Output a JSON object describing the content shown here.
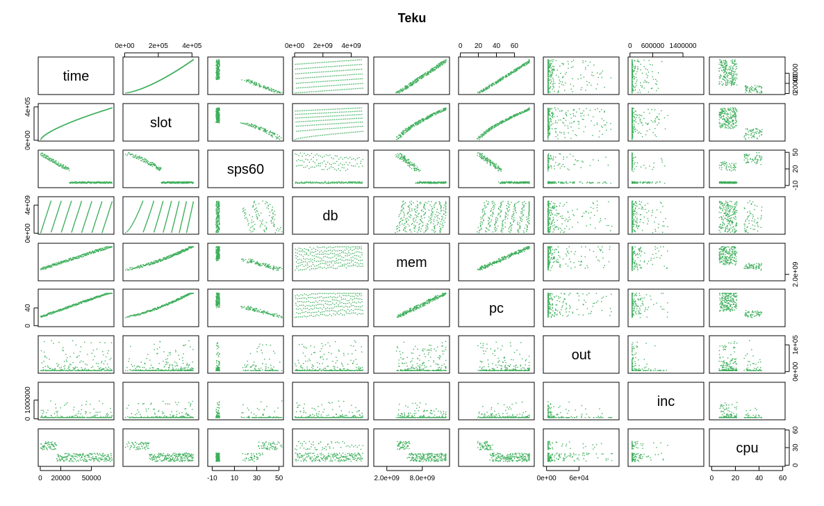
{
  "chart_data": {
    "type": "scatter",
    "title": "Teku",
    "matrix": "pairs",
    "point_color": "#3cae5a",
    "variables": [
      {
        "name": "time",
        "ticks": [
          "0",
          "20000",
          "50000"
        ],
        "tick_values": [
          0,
          20000,
          50000
        ],
        "range": [
          -2000,
          72000
        ],
        "side": "bottom",
        "tick_values_right": [
          0,
          20000,
          40000
        ],
        "ticks_right": [
          "0",
          "20000",
          "40000"
        ]
      },
      {
        "name": "slot",
        "ticks": [
          "0e+00",
          "2e+05",
          "4e+05"
        ],
        "tick_values": [
          0,
          200000,
          400000
        ],
        "range": [
          -10000,
          440000
        ],
        "side": "top",
        "ticks_left": [
          "0e+00",
          "4e+05"
        ],
        "tick_values_left": [
          0,
          400000
        ]
      },
      {
        "name": "sps60",
        "ticks": [
          "-10",
          "10",
          "30",
          "50"
        ],
        "tick_values": [
          -10,
          10,
          30,
          50
        ],
        "range": [
          -14,
          54
        ],
        "side": "bottom",
        "ticks_right": [
          "-10",
          "20",
          "50"
        ],
        "tick_values_right": [
          -10,
          20,
          50
        ]
      },
      {
        "name": "db",
        "ticks": [
          "0e+00",
          "2e+09",
          "4e+09"
        ],
        "tick_values": [
          0,
          2000000000,
          4000000000
        ],
        "range": [
          -150000000,
          5200000000
        ],
        "side": "top",
        "ticks_left": [
          "0e+00",
          "4e+09"
        ],
        "tick_values_left": [
          0,
          4000000000
        ]
      },
      {
        "name": "mem",
        "ticks": [
          "2.0e+09",
          "8.0e+09"
        ],
        "tick_values": [
          2000000000,
          8000000000
        ],
        "range": [
          -200000000,
          12600000000
        ],
        "side": "bottom",
        "ticks_right": [
          "2.0e+09"
        ],
        "tick_values_right": [
          2000000000
        ]
      },
      {
        "name": "pc",
        "ticks": [
          "0",
          "20",
          "40",
          "60"
        ],
        "tick_values": [
          0,
          20,
          40,
          60
        ],
        "range": [
          -2,
          82
        ],
        "side": "top",
        "ticks_left": [
          "0",
          "40"
        ],
        "tick_values_left": [
          0,
          40
        ]
      },
      {
        "name": "out",
        "ticks": [
          "0e+00",
          "6e+04"
        ],
        "tick_values": [
          0,
          60000
        ],
        "range": [
          -6000,
          134000
        ],
        "side": "bottom",
        "ticks_right": [
          "0e+00",
          "1e+05"
        ],
        "tick_values_right": [
          0,
          100000
        ]
      },
      {
        "name": "inc",
        "ticks": [
          "0",
          "600000",
          "1400000"
        ],
        "tick_values": [
          0,
          600000,
          1400000
        ],
        "range": [
          -50000,
          1950000
        ],
        "side": "top",
        "ticks_left": [
          "0",
          "1000000"
        ],
        "tick_values_left": [
          0,
          1000000
        ]
      },
      {
        "name": "cpu",
        "ticks": [
          "0",
          "20",
          "40",
          "60"
        ],
        "tick_values": [
          0,
          20,
          40,
          60
        ],
        "range": [
          -2,
          62
        ],
        "side": "bottom",
        "ticks_right": [
          "0",
          "30",
          "60"
        ],
        "tick_values_right": [
          0,
          30,
          60
        ]
      }
    ]
  }
}
